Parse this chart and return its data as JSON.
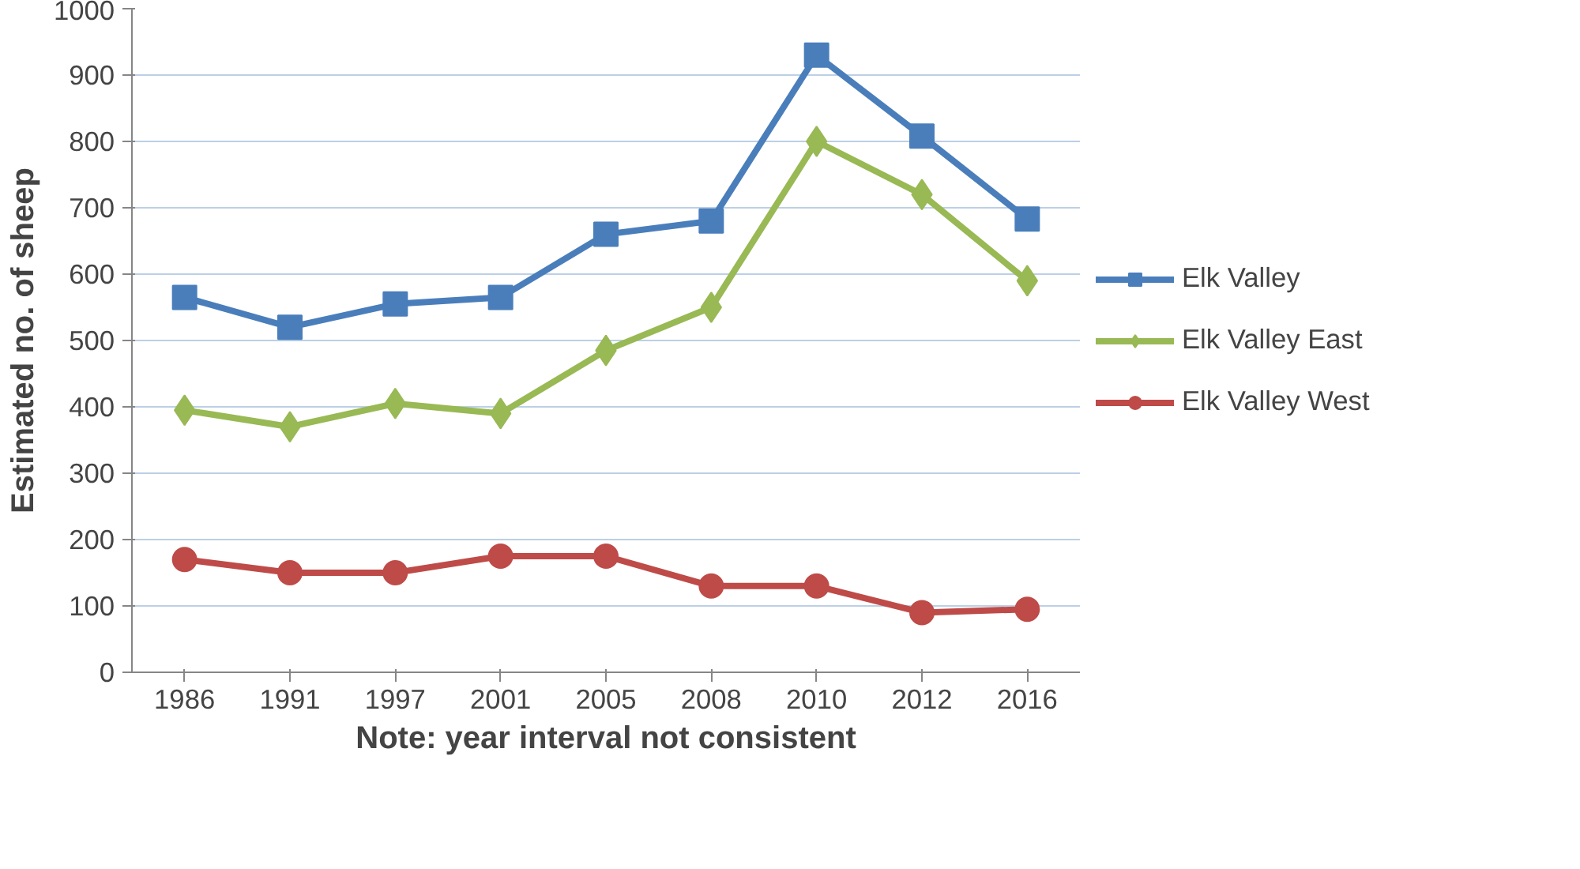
{
  "chart_data": {
    "type": "line",
    "xlabel": "Note: year interval not consistent",
    "ylabel": "Estimated no. of sheep",
    "categories": [
      "1986",
      "1991",
      "1997",
      "2001",
      "2005",
      "2008",
      "2010",
      "2012",
      "2016"
    ],
    "series": [
      {
        "name": "Elk Valley",
        "color": "#4a7ebb",
        "marker": "square",
        "values": [
          565,
          520,
          555,
          565,
          660,
          680,
          930,
          808,
          683
        ]
      },
      {
        "name": "Elk Valley East",
        "color": "#98b954",
        "marker": "diamond",
        "values": [
          395,
          370,
          405,
          390,
          485,
          550,
          800,
          720,
          590
        ]
      },
      {
        "name": "Elk Valley West",
        "color": "#be4b48",
        "marker": "circle",
        "values": [
          170,
          150,
          150,
          175,
          175,
          130,
          130,
          90,
          95
        ]
      }
    ],
    "ylim": [
      0,
      1000
    ],
    "yticks": [
      0,
      100,
      200,
      300,
      400,
      500,
      600,
      700,
      800,
      900,
      1000
    ],
    "grid": "y",
    "legend": "right",
    "line_style": "solid"
  }
}
